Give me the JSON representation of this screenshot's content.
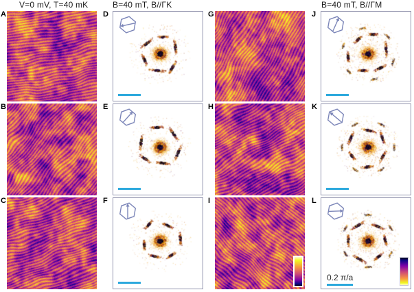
{
  "headers": [
    {
      "text": "V=0 mV, T=40 mK"
    },
    {
      "text": "B=40 mT, B//ΓK"
    },
    {
      "text": "B=40 mT, B//ΓM"
    }
  ],
  "scale_label": "0.2 π/a",
  "colors": {
    "fft_border": "#9193ad",
    "scalebar": "#2da9dd",
    "hexagon": "#7b85b8",
    "plasma": [
      "#0d0887",
      "#7e03a8",
      "#cc4778",
      "#f89441",
      "#f0f921"
    ]
  },
  "panels": [
    {
      "label": "A",
      "kind": "real",
      "seed": 101,
      "stripe_deg": 80
    },
    {
      "label": "D",
      "kind": "fft",
      "seed": 211,
      "arrow_deg": 192,
      "fft_rot": 18,
      "dense": false
    },
    {
      "label": "G",
      "kind": "real",
      "seed": 103,
      "stripe_deg": 30
    },
    {
      "label": "J",
      "kind": "fft",
      "seed": 213,
      "arrow_deg": 66,
      "fft_rot": 12,
      "dense": true
    },
    {
      "label": "B",
      "kind": "real",
      "seed": 105,
      "stripe_deg": 40
    },
    {
      "label": "E",
      "kind": "fft",
      "seed": 215,
      "arrow_deg": 48,
      "fft_rot": 40,
      "dense": false
    },
    {
      "label": "H",
      "kind": "real",
      "seed": 107,
      "stripe_deg": 60
    },
    {
      "label": "K",
      "kind": "fft",
      "seed": 217,
      "arrow_deg": 140,
      "fft_rot": 30,
      "dense": true
    },
    {
      "label": "C",
      "kind": "real",
      "seed": 109,
      "stripe_deg": 70
    },
    {
      "label": "F",
      "kind": "fft",
      "seed": 219,
      "arrow_deg": 90,
      "fft_rot": 10,
      "dense": false
    },
    {
      "label": "I",
      "kind": "real",
      "seed": 111,
      "stripe_deg": -50
    },
    {
      "label": "L",
      "kind": "fft",
      "seed": 221,
      "arrow_deg": 2,
      "fft_rot": 0,
      "dense": true
    }
  ]
}
